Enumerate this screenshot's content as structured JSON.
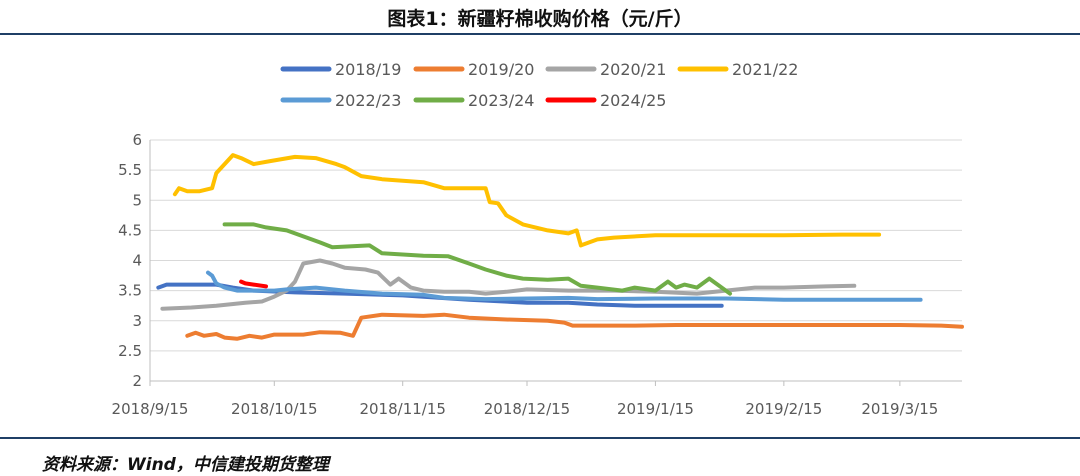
{
  "header": {
    "title": "图表1：新疆籽棉收购价格（元/斤）"
  },
  "footer": {
    "source": "资料来源：Wind，中信建投期货整理"
  },
  "chart_data": {
    "type": "line",
    "ylim": [
      2,
      6
    ],
    "yticks": [
      "2",
      "2.5",
      "3",
      "3.5",
      "4",
      "4.5",
      "5",
      "5.5",
      "6"
    ],
    "xlim": [
      "2018-09-15",
      "2019-03-30"
    ],
    "xticks": [
      {
        "date": "2018-09-15",
        "label": "2018/9/15"
      },
      {
        "date": "2018-10-15",
        "label": "2018/10/15"
      },
      {
        "date": "2018-11-15",
        "label": "2018/11/15"
      },
      {
        "date": "2018-12-15",
        "label": "2018/12/15"
      },
      {
        "date": "2019-01-15",
        "label": "2019/1/15"
      },
      {
        "date": "2019-02-15",
        "label": "2019/2/15"
      },
      {
        "date": "2019-03-15",
        "label": "2019/3/15"
      }
    ],
    "grid": true,
    "legend_position": "top",
    "series": [
      {
        "name": "2018/19",
        "color": "#4472C4",
        "points": [
          [
            "2018-09-17",
            3.55
          ],
          [
            "2018-09-19",
            3.6
          ],
          [
            "2018-10-01",
            3.6
          ],
          [
            "2018-10-05",
            3.55
          ],
          [
            "2018-10-10",
            3.5
          ],
          [
            "2018-10-20",
            3.47
          ],
          [
            "2018-11-01",
            3.45
          ],
          [
            "2018-11-15",
            3.42
          ],
          [
            "2018-12-01",
            3.35
          ],
          [
            "2018-12-15",
            3.3
          ],
          [
            "2018-12-25",
            3.3
          ],
          [
            "2019-01-01",
            3.27
          ],
          [
            "2019-01-10",
            3.25
          ],
          [
            "2019-01-20",
            3.25
          ],
          [
            "2019-01-31",
            3.25
          ]
        ]
      },
      {
        "name": "2019/20",
        "color": "#ED7D31",
        "points": [
          [
            "2018-09-24",
            2.75
          ],
          [
            "2018-09-26",
            2.8
          ],
          [
            "2018-09-28",
            2.75
          ],
          [
            "2018-10-01",
            2.78
          ],
          [
            "2018-10-03",
            2.72
          ],
          [
            "2018-10-06",
            2.7
          ],
          [
            "2018-10-09",
            2.75
          ],
          [
            "2018-10-12",
            2.72
          ],
          [
            "2018-10-15",
            2.77
          ],
          [
            "2018-10-22",
            2.77
          ],
          [
            "2018-10-26",
            2.81
          ],
          [
            "2018-10-31",
            2.8
          ],
          [
            "2018-11-03",
            2.75
          ],
          [
            "2018-11-05",
            3.05
          ],
          [
            "2018-11-10",
            3.1
          ],
          [
            "2018-11-20",
            3.08
          ],
          [
            "2018-11-25",
            3.1
          ],
          [
            "2018-12-01",
            3.05
          ],
          [
            "2018-12-10",
            3.02
          ],
          [
            "2018-12-20",
            3.0
          ],
          [
            "2018-12-24",
            2.97
          ],
          [
            "2018-12-26",
            2.92
          ],
          [
            "2019-01-01",
            2.92
          ],
          [
            "2019-01-10",
            2.92
          ],
          [
            "2019-01-20",
            2.93
          ],
          [
            "2019-02-01",
            2.93
          ],
          [
            "2019-02-15",
            2.93
          ],
          [
            "2019-03-01",
            2.93
          ],
          [
            "2019-03-15",
            2.93
          ],
          [
            "2019-03-25",
            2.92
          ],
          [
            "2019-03-30",
            2.9
          ]
        ]
      },
      {
        "name": "2020/21",
        "color": "#A5A5A5",
        "points": [
          [
            "2018-09-18",
            3.2
          ],
          [
            "2018-09-25",
            3.22
          ],
          [
            "2018-10-01",
            3.25
          ],
          [
            "2018-10-08",
            3.3
          ],
          [
            "2018-10-12",
            3.32
          ],
          [
            "2018-10-15",
            3.4
          ],
          [
            "2018-10-18",
            3.5
          ],
          [
            "2018-10-20",
            3.65
          ],
          [
            "2018-10-22",
            3.95
          ],
          [
            "2018-10-26",
            4.0
          ],
          [
            "2018-10-29",
            3.95
          ],
          [
            "2018-11-01",
            3.88
          ],
          [
            "2018-11-06",
            3.85
          ],
          [
            "2018-11-09",
            3.8
          ],
          [
            "2018-11-12",
            3.6
          ],
          [
            "2018-11-14",
            3.7
          ],
          [
            "2018-11-17",
            3.55
          ],
          [
            "2018-11-20",
            3.5
          ],
          [
            "2018-11-25",
            3.48
          ],
          [
            "2018-12-01",
            3.48
          ],
          [
            "2018-12-05",
            3.45
          ],
          [
            "2018-12-10",
            3.48
          ],
          [
            "2018-12-15",
            3.52
          ],
          [
            "2018-12-25",
            3.5
          ],
          [
            "2019-01-05",
            3.5
          ],
          [
            "2019-01-15",
            3.48
          ],
          [
            "2019-01-25",
            3.45
          ],
          [
            "2019-02-01",
            3.5
          ],
          [
            "2019-02-08",
            3.55
          ],
          [
            "2019-02-15",
            3.55
          ],
          [
            "2019-02-25",
            3.57
          ],
          [
            "2019-03-04",
            3.58
          ]
        ]
      },
      {
        "name": "2021/22",
        "color": "#FFC000",
        "points": [
          [
            "2018-09-21",
            5.1
          ],
          [
            "2018-09-22",
            5.2
          ],
          [
            "2018-09-24",
            5.15
          ],
          [
            "2018-09-27",
            5.15
          ],
          [
            "2018-09-30",
            5.2
          ],
          [
            "2018-10-01",
            5.45
          ],
          [
            "2018-10-05",
            5.75
          ],
          [
            "2018-10-07",
            5.7
          ],
          [
            "2018-10-10",
            5.6
          ],
          [
            "2018-10-14",
            5.65
          ],
          [
            "2018-10-20",
            5.72
          ],
          [
            "2018-10-25",
            5.7
          ],
          [
            "2018-10-30",
            5.6
          ],
          [
            "2018-11-01",
            5.55
          ],
          [
            "2018-11-05",
            5.4
          ],
          [
            "2018-11-10",
            5.35
          ],
          [
            "2018-11-20",
            5.3
          ],
          [
            "2018-11-25",
            5.2
          ],
          [
            "2018-12-01",
            5.2
          ],
          [
            "2018-12-05",
            5.2
          ],
          [
            "2018-12-06",
            4.97
          ],
          [
            "2018-12-08",
            4.95
          ],
          [
            "2018-12-10",
            4.75
          ],
          [
            "2018-12-14",
            4.6
          ],
          [
            "2018-12-20",
            4.5
          ],
          [
            "2018-12-25",
            4.45
          ],
          [
            "2018-12-27",
            4.5
          ],
          [
            "2018-12-28",
            4.25
          ],
          [
            "2019-01-01",
            4.35
          ],
          [
            "2019-01-05",
            4.38
          ],
          [
            "2019-01-15",
            4.42
          ],
          [
            "2019-02-01",
            4.42
          ],
          [
            "2019-02-15",
            4.42
          ],
          [
            "2019-03-01",
            4.43
          ],
          [
            "2019-03-10",
            4.43
          ]
        ]
      },
      {
        "name": "2022/23",
        "color": "#5B9BD5",
        "points": [
          [
            "2018-09-29",
            3.8
          ],
          [
            "2018-09-30",
            3.75
          ],
          [
            "2018-10-01",
            3.62
          ],
          [
            "2018-10-03",
            3.55
          ],
          [
            "2018-10-06",
            3.5
          ],
          [
            "2018-10-10",
            3.5
          ],
          [
            "2018-10-15",
            3.5
          ],
          [
            "2018-10-18",
            3.52
          ],
          [
            "2018-10-25",
            3.55
          ],
          [
            "2018-11-01",
            3.5
          ],
          [
            "2018-11-10",
            3.45
          ],
          [
            "2018-11-20",
            3.43
          ],
          [
            "2018-11-25",
            3.38
          ],
          [
            "2018-12-05",
            3.36
          ],
          [
            "2018-12-15",
            3.37
          ],
          [
            "2018-12-25",
            3.38
          ],
          [
            "2019-01-01",
            3.36
          ],
          [
            "2019-01-15",
            3.37
          ],
          [
            "2019-02-01",
            3.37
          ],
          [
            "2019-02-15",
            3.35
          ],
          [
            "2019-03-01",
            3.35
          ],
          [
            "2019-03-20",
            3.35
          ]
        ]
      },
      {
        "name": "2023/24",
        "color": "#70AD47",
        "points": [
          [
            "2018-10-03",
            4.6
          ],
          [
            "2018-10-10",
            4.6
          ],
          [
            "2018-10-13",
            4.55
          ],
          [
            "2018-10-18",
            4.5
          ],
          [
            "2018-10-22",
            4.4
          ],
          [
            "2018-10-26",
            4.3
          ],
          [
            "2018-10-29",
            4.22
          ],
          [
            "2018-11-07",
            4.25
          ],
          [
            "2018-11-10",
            4.12
          ],
          [
            "2018-11-20",
            4.08
          ],
          [
            "2018-11-26",
            4.07
          ],
          [
            "2018-12-01",
            3.95
          ],
          [
            "2018-12-05",
            3.85
          ],
          [
            "2018-12-10",
            3.75
          ],
          [
            "2018-12-14",
            3.7
          ],
          [
            "2018-12-20",
            3.68
          ],
          [
            "2018-12-25",
            3.7
          ],
          [
            "2018-12-28",
            3.58
          ],
          [
            "2019-01-01",
            3.55
          ],
          [
            "2019-01-07",
            3.5
          ],
          [
            "2019-01-10",
            3.55
          ],
          [
            "2019-01-15",
            3.5
          ],
          [
            "2019-01-18",
            3.65
          ],
          [
            "2019-01-20",
            3.55
          ],
          [
            "2019-01-22",
            3.6
          ],
          [
            "2019-01-25",
            3.55
          ],
          [
            "2019-01-28",
            3.7
          ],
          [
            "2019-01-30",
            3.6
          ],
          [
            "2019-02-02",
            3.45
          ]
        ]
      },
      {
        "name": "2024/25",
        "color": "#FF0000",
        "points": [
          [
            "2018-10-07",
            3.65
          ],
          [
            "2018-10-08",
            3.62
          ],
          [
            "2018-10-10",
            3.6
          ],
          [
            "2018-10-13",
            3.57
          ]
        ]
      }
    ]
  }
}
